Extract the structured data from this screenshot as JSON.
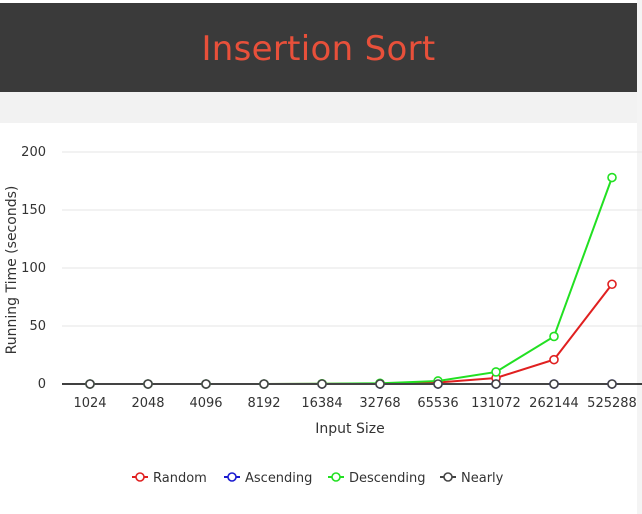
{
  "header": {
    "title": "Insertion Sort"
  },
  "colors": {
    "header_bg": "#3a3a3a",
    "title": "#e8503a"
  },
  "chart_data": {
    "type": "line",
    "title": "",
    "xlabel": "Input Size",
    "ylabel": "Running Time (seconds)",
    "categories": [
      "1024",
      "2048",
      "4096",
      "8192",
      "16384",
      "32768",
      "65536",
      "131072",
      "262144",
      "525288"
    ],
    "ylim": [
      0,
      200
    ],
    "yticks": [
      0,
      50,
      100,
      150,
      200
    ],
    "grid": true,
    "legend_position": "bottom",
    "series": [
      {
        "name": "Random",
        "color": "#e02020",
        "values": [
          0,
          0,
          0,
          0,
          0.1,
          0.3,
          1.3,
          5.2,
          21,
          86
        ]
      },
      {
        "name": "Ascending",
        "color": "#1a1ad0",
        "values": [
          0,
          0,
          0,
          0,
          0,
          0,
          0,
          0,
          0,
          0
        ]
      },
      {
        "name": "Descending",
        "color": "#22e022",
        "values": [
          0,
          0,
          0,
          0,
          0.2,
          0.6,
          2.6,
          10.4,
          41,
          178
        ]
      },
      {
        "name": "Nearly",
        "color": "#444444",
        "values": [
          0,
          0,
          0,
          0,
          0,
          0,
          0,
          0,
          0,
          0
        ]
      }
    ]
  }
}
